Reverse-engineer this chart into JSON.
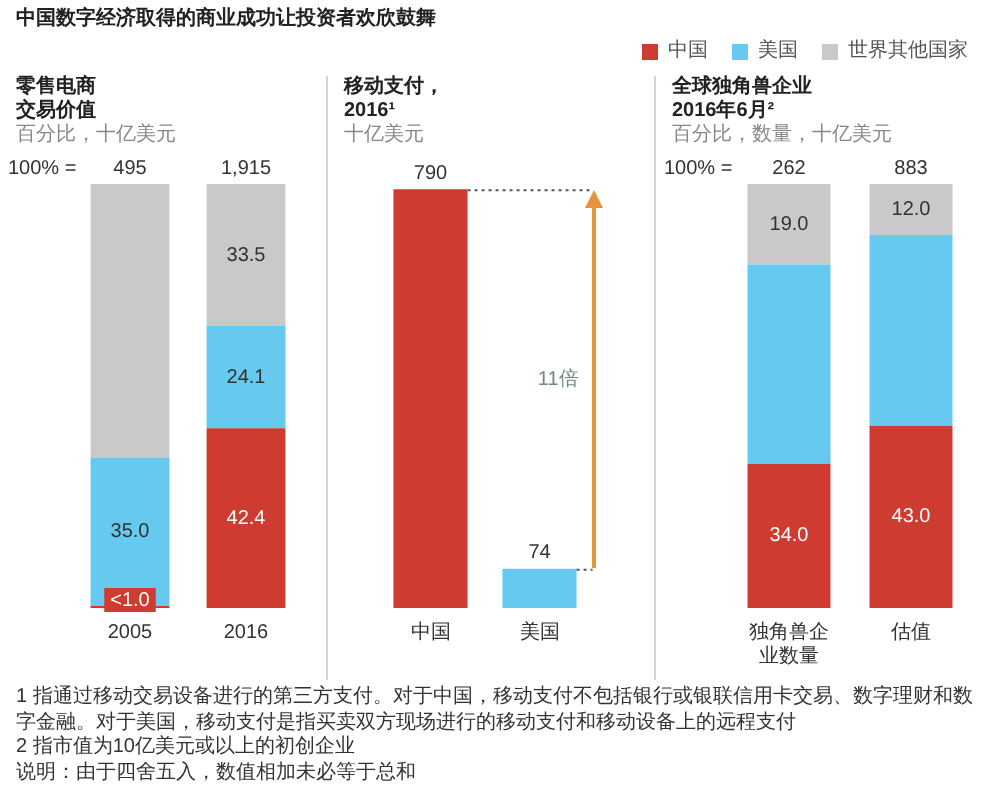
{
  "chart_data": [
    {
      "type": "other",
      "title": "中国数字经济取得的商业成功让投资者欢欣鼓舞"
    },
    {
      "type": "bar",
      "title": "零售电商交易价值",
      "subtitle": "百分比，十亿美元",
      "categories": [
        "2005",
        "2016"
      ],
      "stacked": true,
      "legend": "top right",
      "series": [
        {
          "name": "中国",
          "color": "#cf3b30",
          "values": [
            0.5,
            42.4
          ],
          "value_labels": [
            "<1.0",
            "42.4"
          ]
        },
        {
          "name": "美国",
          "color": "#66c9ef",
          "values": [
            35.0,
            24.1
          ],
          "value_labels": [
            "35.0",
            "24.1"
          ]
        },
        {
          "name": "世界其他国家",
          "color": "#c9c9c9",
          "values": [
            64.5,
            33.5
          ],
          "value_labels": [
            null,
            "33.5"
          ]
        }
      ],
      "annotations": [
        "100% =",
        {
          "text": "495",
          "x": "2005",
          "y": 100
        },
        {
          "text": "1,915",
          "x": "2016",
          "y": 100
        }
      ]
    },
    {
      "type": "bar",
      "title": "移动支付，2016¹",
      "subtitle": "十亿美元",
      "categories": [
        "中国",
        "美国"
      ],
      "values": [
        790,
        74
      ],
      "colors": [
        "#cf3b30",
        "#66c9ef"
      ],
      "data_labels": true,
      "annotations": [
        "11倍"
      ]
    },
    {
      "type": "bar",
      "title": "全球独角兽企业2016年6月²",
      "subtitle": "百分比，数量，十亿美元",
      "categories": [
        "独角兽企业数量",
        "估值"
      ],
      "stacked": true,
      "legend": "top right",
      "series": [
        {
          "name": "中国",
          "color": "#cf3b30",
          "values": [
            34.0,
            43.0
          ],
          "value_labels": [
            "34.0",
            "43.0"
          ]
        },
        {
          "name": "美国",
          "color": "#66c9ef",
          "values": [
            47.0,
            45.0
          ],
          "value_labels": [
            null,
            null
          ]
        },
        {
          "name": "世界其他国家",
          "color": "#c9c9c9",
          "values": [
            19.0,
            12.0
          ],
          "value_labels": [
            "19.0",
            "12.0"
          ]
        }
      ],
      "annotations": [
        "100% =",
        {
          "text": "262",
          "x": "独角兽企业数量",
          "y": 100
        },
        {
          "text": "883",
          "x": "估值",
          "y": 100
        }
      ]
    },
    {
      "type": "other",
      "annotations": [
        "1 指通过移动交易设备进行的第三方支付。对于中国，移动支付不包括银行或银联信用卡交易、数字理财和数字金融。对于美国，移动支付是指买卖双方现场进行的移动支付和移动设备上的远程支付",
        "2 指市值为10亿美元或以上的初创企业",
        "说明：由于四舍五入，数值相加未必等于总和"
      ]
    }
  ]
}
